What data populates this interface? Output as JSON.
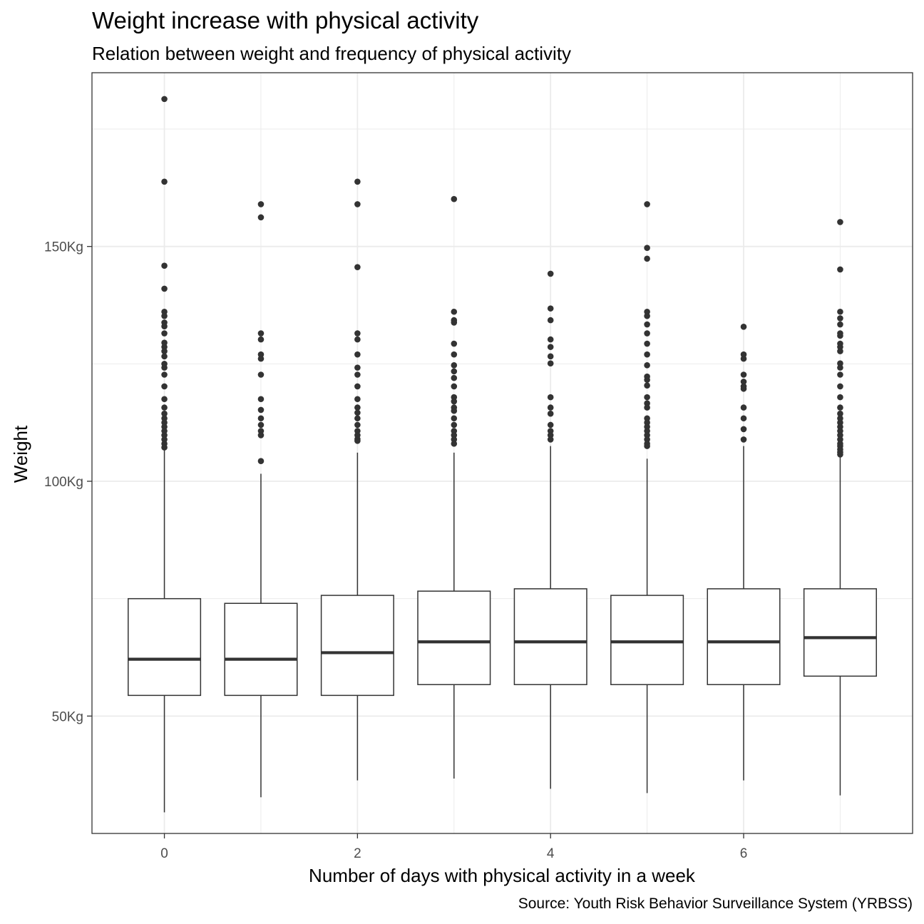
{
  "chart_data": {
    "type": "boxplot",
    "title": "Weight increase with physical activity",
    "subtitle": "Relation between weight and frequency of physical activity",
    "caption": "Source: Youth Risk Behavior Surveillance System (YRBSS)",
    "xlabel": "Number of days with physical activity in a week",
    "ylabel": "Weight",
    "xlim": [
      -0.75,
      7.75
    ],
    "ylim": [
      25,
      187
    ],
    "x_ticks": [
      0,
      2,
      4,
      6
    ],
    "x_tick_labels": [
      "0",
      "2",
      "4",
      "6"
    ],
    "y_ticks": [
      50,
      100,
      150
    ],
    "y_tick_labels": [
      "50Kg",
      "100Kg",
      "150Kg"
    ],
    "grid": true,
    "theme": "bw",
    "colors": {
      "box_line": "#333333",
      "grid": "#ebebeb",
      "panel_border": "#333333"
    },
    "series": [
      {
        "x": 0,
        "lower_whisker": 29.5,
        "q1": 54.4,
        "median": 62.1,
        "q3": 75.0,
        "upper_whisker": 106.6,
        "outliers": [
          181.4,
          163.8,
          145.9,
          141.0,
          136.1,
          135.2,
          133.8,
          133.0,
          131.5,
          129.5,
          128.6,
          127.7,
          126.6,
          125.0,
          124.2,
          122.7,
          120.2,
          117.5,
          115.7,
          114.4,
          113.4,
          112.5,
          111.6,
          110.7,
          109.8,
          108.9,
          108.0,
          107.2
        ]
      },
      {
        "x": 1,
        "lower_whisker": 32.7,
        "q1": 54.4,
        "median": 62.1,
        "q3": 74.0,
        "upper_whisker": 101.6,
        "outliers": [
          159.0,
          156.2,
          131.5,
          130.2,
          127.0,
          126.1,
          122.7,
          117.5,
          115.2,
          113.4,
          112.0,
          110.7,
          109.8,
          104.3
        ]
      },
      {
        "x": 2,
        "lower_whisker": 36.3,
        "q1": 54.4,
        "median": 63.5,
        "q3": 75.7,
        "upper_whisker": 106.1,
        "outliers": [
          163.8,
          159.0,
          145.6,
          131.5,
          130.2,
          127.0,
          124.2,
          122.7,
          120.2,
          117.5,
          115.7,
          114.6,
          113.4,
          112.0,
          110.7,
          109.8,
          109.0,
          108.6
        ]
      },
      {
        "x": 3,
        "lower_whisker": 36.7,
        "q1": 56.7,
        "median": 65.8,
        "q3": 76.6,
        "upper_whisker": 106.1,
        "outliers": [
          160.1,
          136.1,
          134.3,
          133.8,
          129.3,
          127.0,
          124.7,
          123.4,
          122.0,
          120.2,
          117.9,
          117.0,
          115.7,
          115.0,
          113.4,
          112.0,
          110.7,
          109.8,
          108.9,
          108.0
        ]
      },
      {
        "x": 4,
        "lower_whisker": 34.5,
        "q1": 56.7,
        "median": 65.8,
        "q3": 77.1,
        "upper_whisker": 107.5,
        "outliers": [
          144.2,
          136.8,
          134.3,
          130.2,
          128.6,
          126.6,
          125.1,
          117.9,
          115.7,
          114.4,
          112.0,
          110.7,
          109.8,
          108.9
        ]
      },
      {
        "x": 5,
        "lower_whisker": 33.6,
        "q1": 56.7,
        "median": 65.8,
        "q3": 75.7,
        "upper_whisker": 104.8,
        "outliers": [
          159.0,
          149.7,
          147.4,
          136.1,
          135.2,
          133.4,
          131.5,
          129.3,
          127.0,
          124.7,
          122.3,
          121.6,
          120.4,
          117.9,
          116.6,
          115.7,
          113.4,
          112.5,
          111.6,
          110.7,
          109.8,
          108.9,
          108.0,
          107.5
        ]
      },
      {
        "x": 6,
        "lower_whisker": 36.3,
        "q1": 56.7,
        "median": 65.8,
        "q3": 77.1,
        "upper_whisker": 107.5,
        "outliers": [
          132.9,
          127.0,
          126.1,
          122.7,
          121.2,
          120.2,
          119.7,
          115.7,
          113.4,
          111.1,
          108.9
        ]
      },
      {
        "x": 7,
        "lower_whisker": 33.1,
        "q1": 58.5,
        "median": 66.7,
        "q3": 77.1,
        "upper_whisker": 105.2,
        "outliers": [
          155.2,
          145.1,
          136.1,
          134.7,
          133.4,
          131.5,
          131.0,
          129.3,
          128.6,
          127.7,
          125.1,
          124.2,
          122.7,
          120.2,
          117.9,
          115.7,
          114.4,
          113.4,
          112.5,
          111.6,
          110.7,
          109.8,
          108.9,
          108.0,
          107.5,
          106.8,
          106.2,
          105.7
        ]
      }
    ]
  }
}
